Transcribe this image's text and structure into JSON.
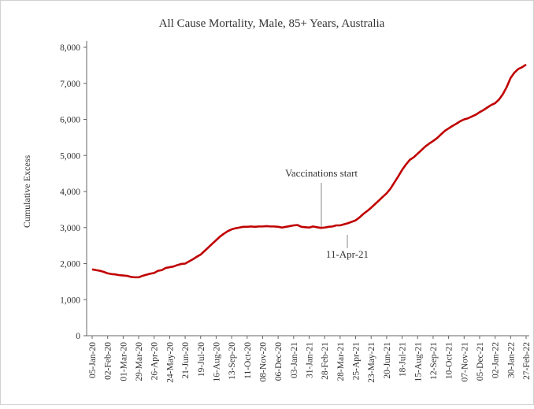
{
  "chart_data": {
    "type": "line",
    "title": "All Cause Mortality, Male, 85+ Years, Australia",
    "ylabel": "Cumulative Excess",
    "annotations": [
      "Vaccinations start",
      "11-Apr-21"
    ],
    "categories": [
      "05-Jan-20",
      null,
      null,
      null,
      "02-Feb-20",
      null,
      null,
      null,
      "01-Mar-20",
      null,
      null,
      null,
      "29-Mar-20",
      null,
      null,
      null,
      "26-Apr-20",
      null,
      null,
      null,
      "24-May-20",
      null,
      null,
      null,
      "21-Jun-20",
      null,
      null,
      null,
      "19-Jul-20",
      null,
      null,
      null,
      "16-Aug-20",
      null,
      null,
      null,
      "13-Sep-20",
      null,
      null,
      null,
      "11-Oct-20",
      null,
      null,
      null,
      "08-Nov-20",
      null,
      null,
      null,
      "06-Dec-20",
      null,
      null,
      null,
      "03-Jan-21",
      null,
      null,
      null,
      "31-Jan-21",
      null,
      null,
      null,
      "28-Feb-21",
      null,
      null,
      null,
      "28-Mar-21",
      null,
      null,
      null,
      "25-Apr-21",
      null,
      null,
      null,
      "23-May-21",
      null,
      null,
      null,
      "20-Jun-21",
      null,
      null,
      null,
      "18-Jul-21",
      null,
      null,
      null,
      "15-Aug-21",
      null,
      null,
      null,
      "12-Sep-21",
      null,
      null,
      null,
      "10-Oct-21",
      null,
      null,
      null,
      "07-Nov-21",
      null,
      null,
      null,
      "05-Dec-21",
      null,
      null,
      null,
      "02-Jan-22",
      null,
      null,
      null,
      "30-Jan-22",
      null,
      null,
      null,
      "27-Feb-22"
    ],
    "series": [
      {
        "name": "Cumulative Excess",
        "color": "#c00000",
        "values": [
          1840,
          1820,
          1800,
          1770,
          1730,
          1710,
          1700,
          1680,
          1670,
          1660,
          1630,
          1620,
          1620,
          1660,
          1690,
          1720,
          1740,
          1800,
          1820,
          1880,
          1900,
          1920,
          1960,
          1990,
          2000,
          2060,
          2120,
          2190,
          2250,
          2350,
          2450,
          2550,
          2650,
          2750,
          2830,
          2900,
          2950,
          2980,
          3000,
          3020,
          3020,
          3030,
          3020,
          3030,
          3030,
          3040,
          3030,
          3030,
          3020,
          3000,
          3020,
          3040,
          3060,
          3070,
          3020,
          3010,
          3000,
          3030,
          3010,
          2990,
          3000,
          3020,
          3030,
          3060,
          3060,
          3090,
          3120,
          3160,
          3200,
          3280,
          3380,
          3460,
          3550,
          3650,
          3750,
          3850,
          3950,
          4080,
          4250,
          4420,
          4600,
          4750,
          4880,
          4950,
          5050,
          5150,
          5250,
          5330,
          5400,
          5480,
          5580,
          5680,
          5750,
          5820,
          5880,
          5950,
          6000,
          6030,
          6080,
          6130,
          6200,
          6260,
          6330,
          6400,
          6450,
          6550,
          6700,
          6900,
          7150,
          7300,
          7400,
          7450,
          7520
        ]
      }
    ],
    "ylim": [
      0,
      8000
    ],
    "yticks": [
      0,
      {
        "value": 1000,
        "label": "1,000"
      },
      {
        "value": 2000,
        "label": "2,000"
      },
      {
        "value": 3000,
        "label": "3,000"
      },
      {
        "value": 4000,
        "label": "4,000"
      },
      {
        "value": 5000,
        "label": "5,000"
      },
      {
        "value": 6000,
        "label": "6,000"
      },
      {
        "value": 7000,
        "label": "7,000"
      },
      {
        "value": 8000,
        "label": "8,000"
      }
    ],
    "grid": false
  }
}
